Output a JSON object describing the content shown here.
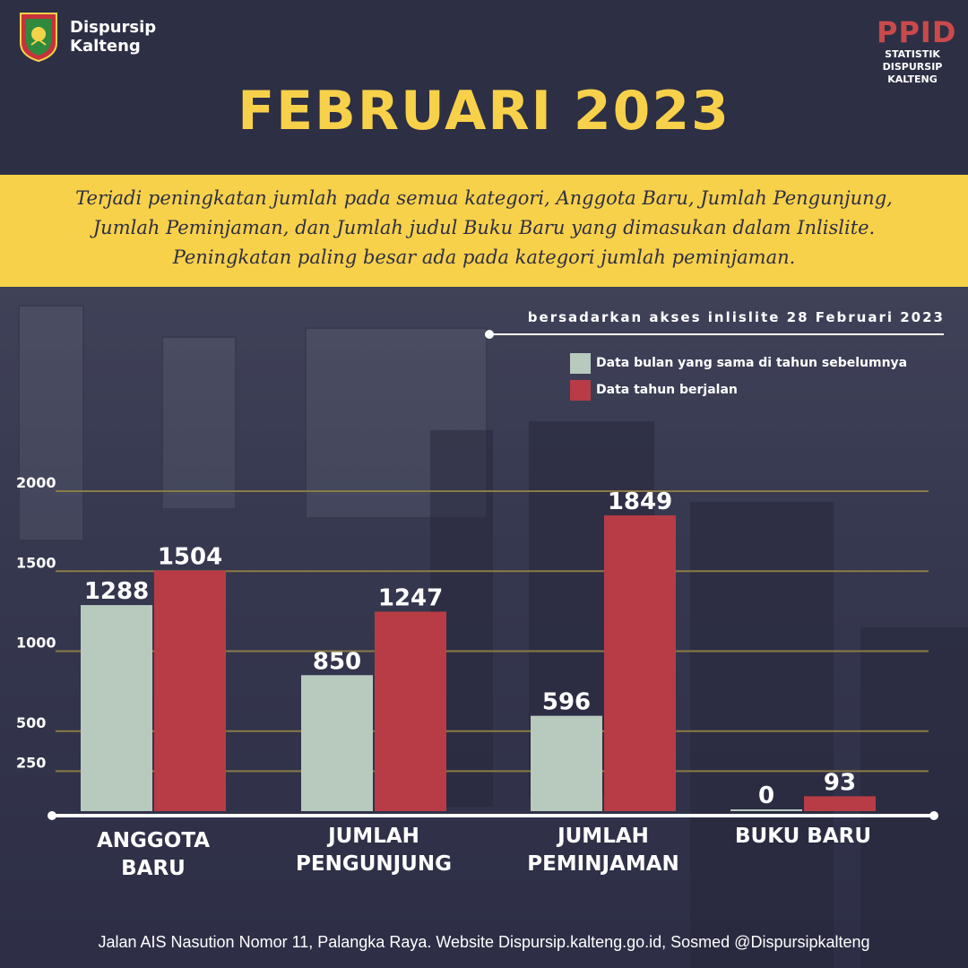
{
  "header": {
    "org_name": "Dispursip Kalteng",
    "ppid_title": "PPID",
    "ppid_subtitle": "STATISTIK DISPURSIP KALTENG",
    "title": "FEBRUARI 2023"
  },
  "summary": {
    "text": "Terjadi peningkatan jumlah pada semua kategori, Anggota Baru, Jumlah Pengunjung, Jumlah Peminjaman, dan Jumlah judul Buku Baru yang dimasukan dalam Inlislite. Peningkatan paling besar ada pada kategori jumlah peminjaman."
  },
  "source_note": "bersadarkan akses inlislite 28 Februari 2023",
  "footer": "Jalan AIS Nasution Nomor 11, Palangka Raya.  Website Dispursip.kalteng.go.id, Sosmed @Dispursipkalteng",
  "colors": {
    "background": "#2d2f45",
    "accent_yellow": "#f8d14a",
    "ppid_red": "#c94a4a",
    "series_previous": "#b8c9be",
    "series_current": "#b83c45",
    "gridline": "#8a7a45"
  },
  "chart_data": {
    "type": "bar",
    "title": "",
    "xlabel": "",
    "ylabel": "",
    "categories": [
      "ANGGOTA BARU",
      "JUMLAH PENGUNJUNG",
      "JUMLAH PEMINJAMAN",
      "BUKU BARU"
    ],
    "y_ticks": [
      250,
      500,
      1000,
      1500,
      2000
    ],
    "ylim": [
      0,
      2000
    ],
    "grid": true,
    "legend_position": "top-right",
    "series": [
      {
        "name": "Data bulan yang sama di tahun sebelumnya",
        "color": "#b8c9be",
        "values": [
          1288,
          850,
          596,
          0
        ]
      },
      {
        "name": "Data tahun berjalan",
        "color": "#b83c45",
        "values": [
          1504,
          1247,
          1849,
          93
        ]
      }
    ]
  }
}
